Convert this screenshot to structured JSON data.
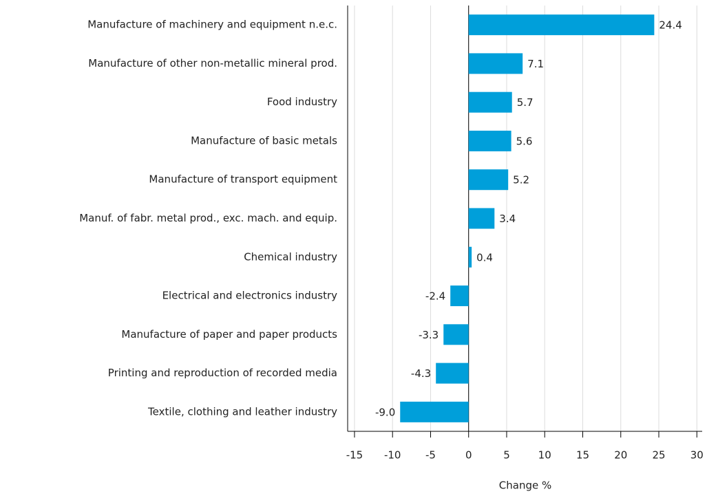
{
  "chart_data": {
    "type": "bar",
    "orientation": "horizontal",
    "categories": [
      "Manufacture of machinery and equipment n.e.c.",
      "Manufacture of other non-metallic mineral prod.",
      "Food industry",
      "Manufacture of basic metals",
      "Manufacture of transport equipment",
      "Manuf. of fabr. metal prod., exc. mach. and equip.",
      "Chemical industry",
      "Electrical and electronics industry",
      "Manufacture of paper and paper products",
      "Printing and reproduction of recorded media",
      "Textile, clothing and leather industry"
    ],
    "values": [
      24.4,
      7.1,
      5.7,
      5.6,
      5.2,
      3.4,
      0.4,
      -2.4,
      -3.3,
      -4.3,
      -9.0
    ],
    "value_labels": [
      "24.4",
      "7.1",
      "5.7",
      "5.6",
      "5.2",
      "3.4",
      "0.4",
      "-2.4",
      "-3.3",
      "-4.3",
      "-9.0"
    ],
    "color": "#009fda",
    "xlabel": "Change %",
    "xlim": [
      -15.9,
      30.7
    ],
    "xticks": [
      -15,
      -10,
      -5,
      0,
      5,
      10,
      15,
      20,
      25,
      30
    ],
    "grid": true
  }
}
